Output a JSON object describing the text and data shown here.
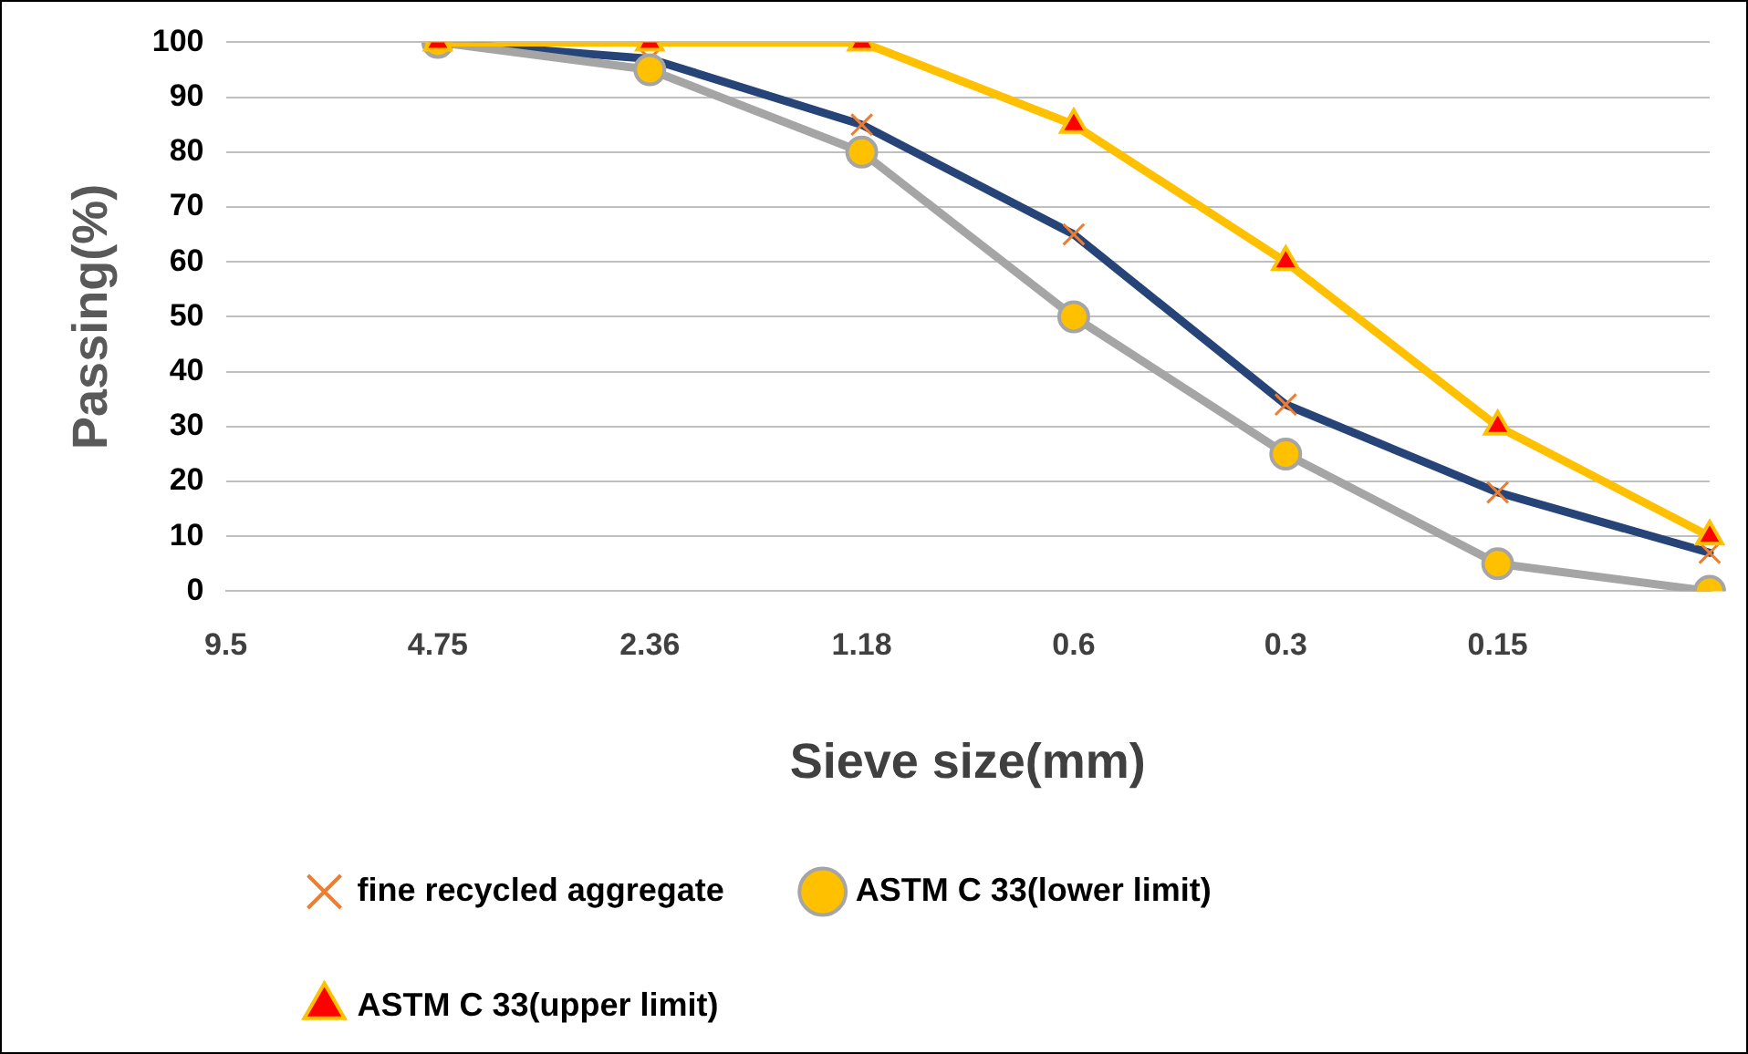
{
  "chart_data": {
    "type": "line",
    "xlabel": "Sieve size(mm)",
    "ylabel": "Passing(%)",
    "categories": [
      "9.5",
      "4.75",
      "2.36",
      "1.18",
      "0.6",
      "0.3",
      "0.15",
      null
    ],
    "series": [
      {
        "name": "fine recycled aggregate",
        "color": "#264478",
        "marker": "cross",
        "values": [
          null,
          100,
          97,
          85,
          65,
          34,
          18,
          7
        ]
      },
      {
        "name": "ASTM C 33(lower limit)",
        "color": "#a5a5a5",
        "marker": "circle",
        "values": [
          null,
          100,
          95,
          80,
          50,
          25,
          5,
          0
        ]
      },
      {
        "name": "ASTM C 33(upper limit)",
        "color": "#ffc000",
        "marker": "triangle",
        "values": [
          null,
          100,
          100,
          100,
          85,
          60,
          30,
          10
        ]
      }
    ],
    "ylim": [
      0,
      100
    ],
    "yticks": [
      0,
      10,
      20,
      30,
      40,
      50,
      60,
      70,
      80,
      90,
      100
    ],
    "grid": "y",
    "legend": "bottom"
  }
}
